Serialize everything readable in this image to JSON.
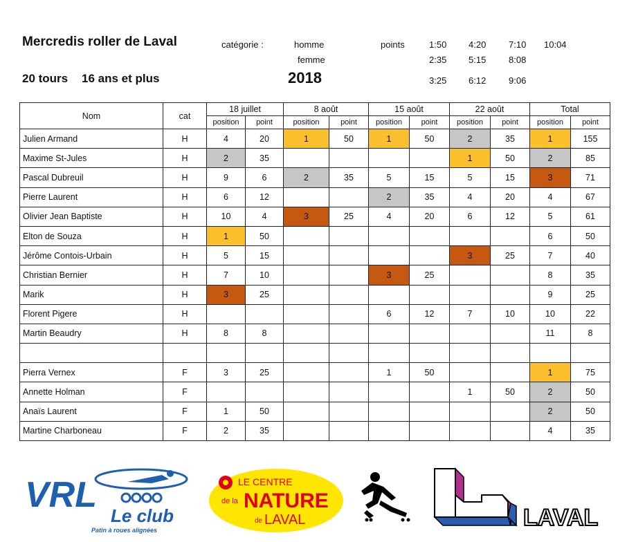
{
  "header": {
    "title": "Mercredis roller de Laval",
    "subtitle_laps": "20 tours",
    "subtitle_age": "16 ans et plus",
    "categorie_label": "catégorie :",
    "cat_homme": "homme",
    "cat_femme": "femme",
    "points_label": "points",
    "year": "2018",
    "times": [
      [
        "1:50",
        "4:20",
        "7:10",
        "10:04"
      ],
      [
        "2:35",
        "5:15",
        "8:08"
      ],
      [
        "3:25",
        "6:12",
        "9:06"
      ]
    ]
  },
  "table": {
    "col_nom": "Nom",
    "col_cat": "cat",
    "dates": [
      "18 juillet",
      "8 août",
      "15 août",
      "22 août"
    ],
    "total": "Total",
    "sub_position": "position",
    "sub_point": "point",
    "rows": [
      {
        "name": "Julien Armand",
        "cat": "H",
        "cells": [
          "4",
          "20",
          "1",
          "50",
          "1",
          "50",
          "2",
          "35",
          "1",
          "155"
        ],
        "medals": [
          "",
          "",
          "gold",
          "",
          "gold",
          "",
          "silver",
          "",
          "gold",
          ""
        ]
      },
      {
        "name": "Maxime St-Jules",
        "cat": "H",
        "cells": [
          "2",
          "35",
          "",
          "",
          "",
          "",
          "1",
          "50",
          "2",
          "85"
        ],
        "medals": [
          "silver",
          "",
          "",
          "",
          "",
          "",
          "gold",
          "",
          "silver",
          ""
        ]
      },
      {
        "name": "Pascal Dubreuil",
        "cat": "H",
        "cells": [
          "9",
          "6",
          "2",
          "35",
          "5",
          "15",
          "5",
          "15",
          "3",
          "71"
        ],
        "medals": [
          "",
          "",
          "silver",
          "",
          "",
          "",
          "",
          "",
          "bronze",
          ""
        ]
      },
      {
        "name": "Pierre Laurent",
        "cat": "H",
        "cells": [
          "6",
          "12",
          "",
          "",
          "2",
          "35",
          "4",
          "20",
          "4",
          "67"
        ],
        "medals": [
          "",
          "",
          "",
          "",
          "silver",
          "",
          "",
          "",
          "",
          ""
        ]
      },
      {
        "name": "Olivier Jean Baptiste",
        "cat": "H",
        "cells": [
          "10",
          "4",
          "3",
          "25",
          "4",
          "20",
          "6",
          "12",
          "5",
          "61"
        ],
        "medals": [
          "",
          "",
          "bronze",
          "",
          "",
          "",
          "",
          "",
          "",
          ""
        ]
      },
      {
        "name": "Elton de Souza",
        "cat": "H",
        "cells": [
          "1",
          "50",
          "",
          "",
          "",
          "",
          "",
          "",
          "6",
          "50"
        ],
        "medals": [
          "gold",
          "",
          "",
          "",
          "",
          "",
          "",
          "",
          "",
          ""
        ]
      },
      {
        "name": "Jérôme Contois-Urbain",
        "cat": "H",
        "cells": [
          "5",
          "15",
          "",
          "",
          "",
          "",
          "3",
          "25",
          "7",
          "40"
        ],
        "medals": [
          "",
          "",
          "",
          "",
          "",
          "",
          "bronze",
          "",
          "",
          ""
        ]
      },
      {
        "name": "Christian Bernier",
        "cat": "H",
        "cells": [
          "7",
          "10",
          "",
          "",
          "3",
          "25",
          "",
          "",
          "8",
          "35"
        ],
        "medals": [
          "",
          "",
          "",
          "",
          "bronze",
          "",
          "",
          "",
          "",
          ""
        ]
      },
      {
        "name": "Marik",
        "cat": "H",
        "cells": [
          "3",
          "25",
          "",
          "",
          "",
          "",
          "",
          "",
          "9",
          "25"
        ],
        "medals": [
          "bronze",
          "",
          "",
          "",
          "",
          "",
          "",
          "",
          "",
          ""
        ]
      },
      {
        "name": "Florent Pigere",
        "cat": "H",
        "cells": [
          "",
          "",
          "",
          "",
          "6",
          "12",
          "7",
          "10",
          "10",
          "22"
        ],
        "medals": [
          "",
          "",
          "",
          "",
          "",
          "",
          "",
          "",
          "",
          ""
        ]
      },
      {
        "name": "Martin Beaudry",
        "cat": "H",
        "cells": [
          "8",
          "8",
          "",
          "",
          "",
          "",
          "",
          "",
          "11",
          "8"
        ],
        "medals": [
          "",
          "",
          "",
          "",
          "",
          "",
          "",
          "",
          "",
          ""
        ]
      },
      {
        "name": "",
        "cat": "",
        "cells": [
          "",
          "",
          "",
          "",
          "",
          "",
          "",
          "",
          "",
          ""
        ],
        "medals": [
          "",
          "",
          "",
          "",
          "",
          "",
          "",
          "",
          "",
          ""
        ]
      },
      {
        "name": "Pierra Vernex",
        "cat": "F",
        "cells": [
          "3",
          "25",
          "",
          "",
          "1",
          "50",
          "",
          "",
          "1",
          "75"
        ],
        "medals": [
          "",
          "",
          "",
          "",
          "",
          "",
          "",
          "",
          "gold",
          ""
        ]
      },
      {
        "name": "Annette Holman",
        "cat": "F",
        "cells": [
          "",
          "",
          "",
          "",
          "",
          "",
          "1",
          "50",
          "2",
          "50"
        ],
        "medals": [
          "",
          "",
          "",
          "",
          "",
          "",
          "",
          "",
          "silver",
          ""
        ]
      },
      {
        "name": "Anaïs Laurent",
        "cat": "F",
        "cells": [
          "1",
          "50",
          "",
          "",
          "",
          "",
          "",
          "",
          "2",
          "50"
        ],
        "medals": [
          "",
          "",
          "",
          "",
          "",
          "",
          "",
          "",
          "silver",
          ""
        ]
      },
      {
        "name": "Martine Charboneau",
        "cat": "F",
        "cells": [
          "2",
          "35",
          "",
          "",
          "",
          "",
          "",
          "",
          "4",
          "35"
        ],
        "medals": [
          "",
          "",
          "",
          "",
          "",
          "",
          "",
          "",
          "",
          ""
        ]
      }
    ]
  },
  "logos": {
    "vrl_text": "VRL",
    "vrl_club": "Le club",
    "vrl_tagline": "Patin à roues alignées",
    "nature_line1": "LE CENTRE",
    "nature_dela": "de la",
    "nature_big": "NATURE",
    "nature_de": "de",
    "nature_laval": "LAVAL",
    "laval_text": "LAVAL"
  },
  "colors": {
    "gold": "#FBC02D",
    "silver": "#C6C6C6",
    "bronze": "#C65911",
    "vrl_blue": "#1F5FAF",
    "nature_yellow": "#FFE600",
    "nature_red": "#E2001A",
    "laval_purple": "#B0308C",
    "laval_blue": "#2A5DB0"
  }
}
